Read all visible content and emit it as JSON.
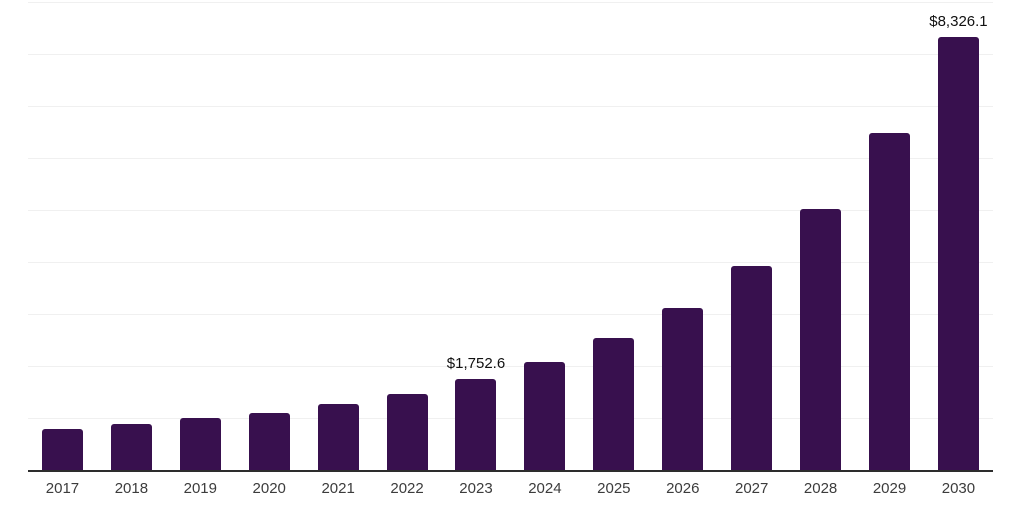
{
  "chart_data": {
    "type": "bar",
    "title": "",
    "xlabel": "",
    "ylabel": "",
    "categories": [
      "2017",
      "2018",
      "2019",
      "2020",
      "2021",
      "2022",
      "2023",
      "2024",
      "2025",
      "2026",
      "2027",
      "2028",
      "2029",
      "2030"
    ],
    "values": [
      785,
      880,
      1005,
      1095,
      1275,
      1465,
      1752.6,
      2085,
      2530,
      3125,
      3930,
      5010,
      6480,
      8326.1
    ],
    "value_labels": [
      "",
      "",
      "",
      "",
      "",
      "",
      "$1,752.6",
      "",
      "",
      "",
      "",
      "",
      "",
      "$8,326.1"
    ],
    "ylim": [
      0,
      9000
    ],
    "gridline_interval": 1000,
    "grid": "horizontal",
    "y_tick_labels": "none",
    "legend": "none",
    "colors": {
      "bar": "#38104E",
      "gridline": "#F0F0F0",
      "axis_line": "#2D2D2D",
      "tick_label": "#3C3C3C",
      "value_label": "#111111",
      "background": "#FFFFFF"
    }
  }
}
